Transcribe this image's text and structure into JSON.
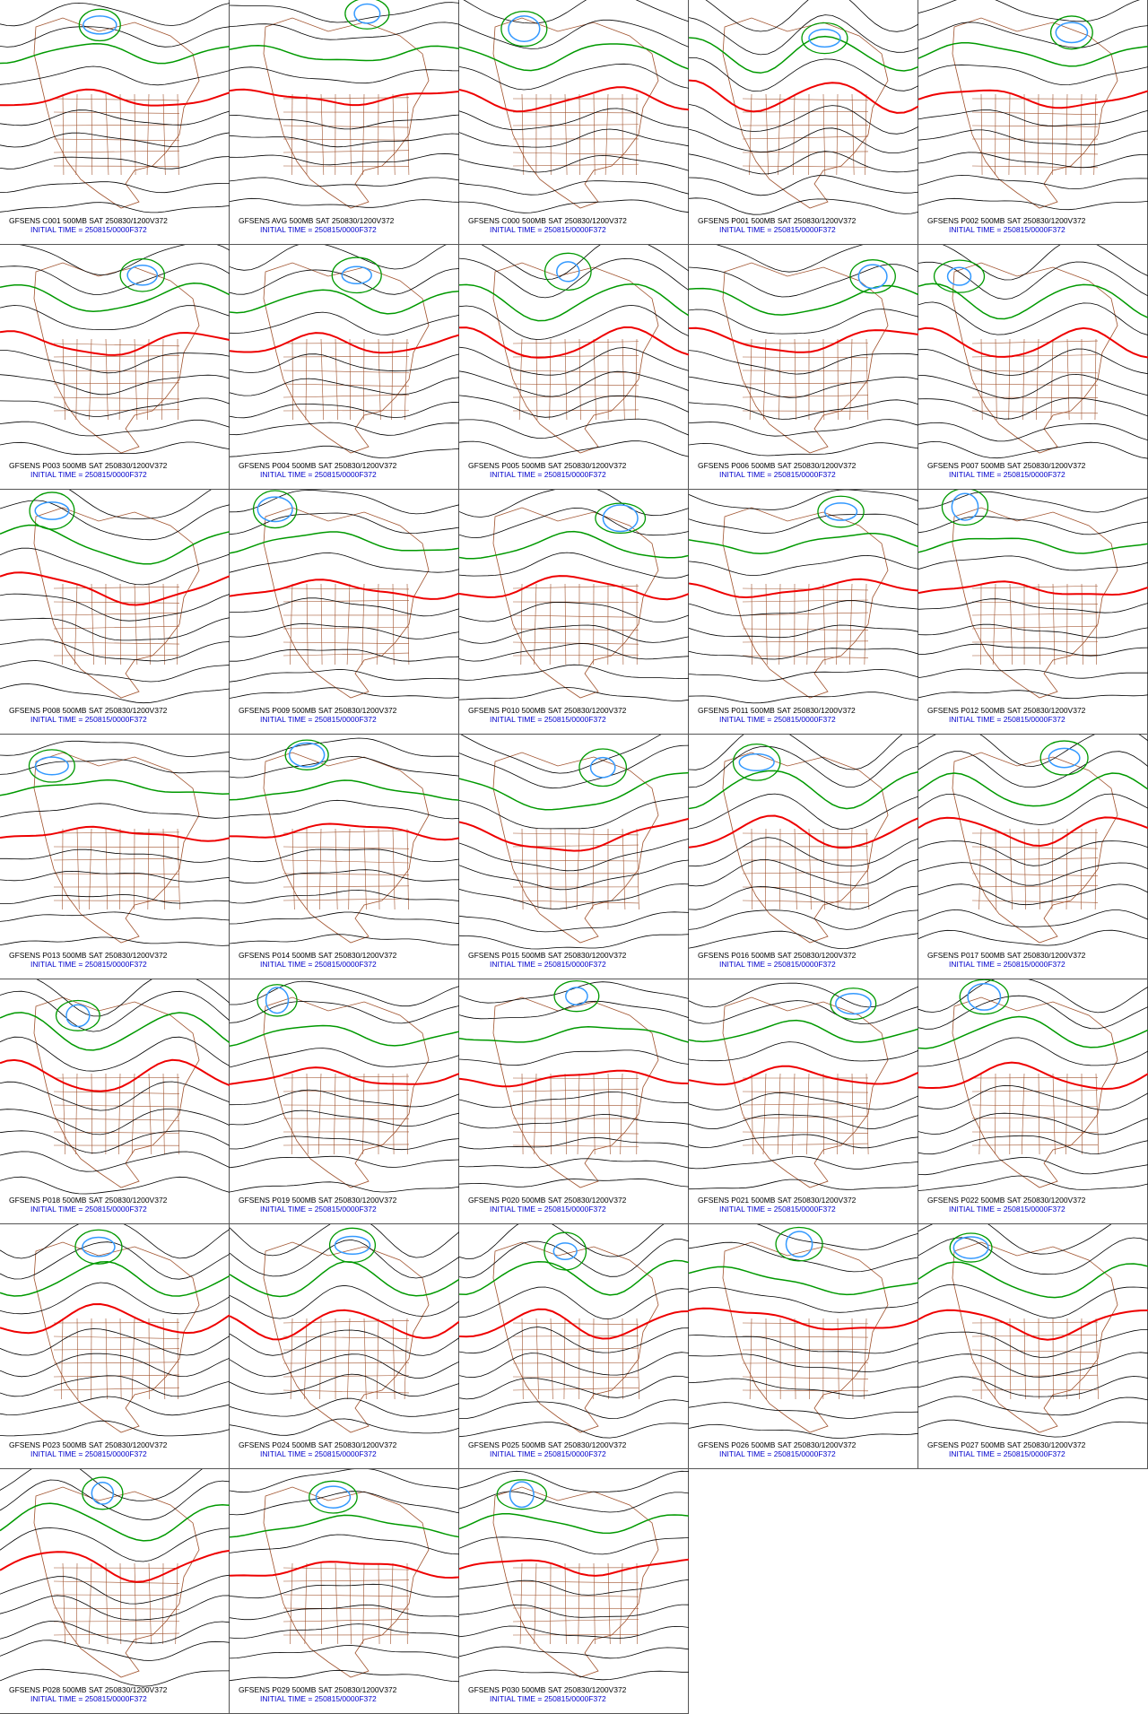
{
  "panels": [
    {
      "header": "GFSENS C001 500MB SAT 250830/1200V372",
      "initial_time": "INITIAL TIME = 250815/0000F372"
    },
    {
      "header": "GFSENS AVG 500MB SAT 250830/1200V372",
      "initial_time": "INITIAL TIME = 250815/0000F372"
    },
    {
      "header": "GFSENS C000 500MB SAT 250830/1200V372",
      "initial_time": "INITIAL TIME = 250815/0000F372"
    },
    {
      "header": "GFSENS P001 500MB SAT 250830/1200V372",
      "initial_time": "INITIAL TIME = 250815/0000F372"
    },
    {
      "header": "GFSENS P002 500MB SAT 250830/1200V372",
      "initial_time": "INITIAL TIME = 250815/0000F372"
    },
    {
      "header": "GFSENS P003 500MB SAT 250830/1200V372",
      "initial_time": "INITIAL TIME = 250815/0000F372"
    },
    {
      "header": "GFSENS P004 500MB SAT 250830/1200V372",
      "initial_time": "INITIAL TIME = 250815/0000F372"
    },
    {
      "header": "GFSENS P005 500MB SAT 250830/1200V372",
      "initial_time": "INITIAL TIME = 250815/0000F372"
    },
    {
      "header": "GFSENS P006 500MB SAT 250830/1200V372",
      "initial_time": "INITIAL TIME = 250815/0000F372"
    },
    {
      "header": "GFSENS P007 500MB SAT 250830/1200V372",
      "initial_time": "INITIAL TIME = 250815/0000F372"
    },
    {
      "header": "GFSENS P008 500MB SAT 250830/1200V372",
      "initial_time": "INITIAL TIME = 250815/0000F372"
    },
    {
      "header": "GFSENS P009 500MB SAT 250830/1200V372",
      "initial_time": "INITIAL TIME = 250815/0000F372"
    },
    {
      "header": "GFSENS P010 500MB SAT 250830/1200V372",
      "initial_time": "INITIAL TIME = 250815/0000F372"
    },
    {
      "header": "GFSENS P011 500MB SAT 250830/1200V372",
      "initial_time": "INITIAL TIME = 250815/0000F372"
    },
    {
      "header": "GFSENS P012 500MB SAT 250830/1200V372",
      "initial_time": "INITIAL TIME = 250815/0000F372"
    },
    {
      "header": "GFSENS P013 500MB SAT 250830/1200V372",
      "initial_time": "INITIAL TIME = 250815/0000F372"
    },
    {
      "header": "GFSENS P014 500MB SAT 250830/1200V372",
      "initial_time": "INITIAL TIME = 250815/0000F372"
    },
    {
      "header": "GFSENS P015 500MB SAT 250830/1200V372",
      "initial_time": "INITIAL TIME = 250815/0000F372"
    },
    {
      "header": "GFSENS P016 500MB SAT 250830/1200V372",
      "initial_time": "INITIAL TIME = 250815/0000F372"
    },
    {
      "header": "GFSENS P017 500MB SAT 250830/1200V372",
      "initial_time": "INITIAL TIME = 250815/0000F372"
    },
    {
      "header": "GFSENS P018 500MB SAT 250830/1200V372",
      "initial_time": "INITIAL TIME = 250815/0000F372"
    },
    {
      "header": "GFSENS P019 500MB SAT 250830/1200V372",
      "initial_time": "INITIAL TIME = 250815/0000F372"
    },
    {
      "header": "GFSENS P020 500MB SAT 250830/1200V372",
      "initial_time": "INITIAL TIME = 250815/0000F372"
    },
    {
      "header": "GFSENS P021 500MB SAT 250830/1200V372",
      "initial_time": "INITIAL TIME = 250815/0000F372"
    },
    {
      "header": "GFSENS P022 500MB SAT 250830/1200V372",
      "initial_time": "INITIAL TIME = 250815/0000F372"
    },
    {
      "header": "GFSENS P023 500MB SAT 250830/1200V372",
      "initial_time": "INITIAL TIME = 250815/0000F372"
    },
    {
      "header": "GFSENS P024 500MB SAT 250830/1200V372",
      "initial_time": "INITIAL TIME = 250815/0000F372"
    },
    {
      "header": "GFSENS P025 500MB SAT 250830/1200V372",
      "initial_time": "INITIAL TIME = 250815/0000F372"
    },
    {
      "header": "GFSENS P026 500MB SAT 250830/1200V372",
      "initial_time": "INITIAL TIME = 250815/0000F372"
    },
    {
      "header": "GFSENS P027 500MB SAT 250830/1200V372",
      "initial_time": "INITIAL TIME = 250815/0000F372"
    },
    {
      "header": "GFSENS P028 500MB SAT 250830/1200V372",
      "initial_time": "INITIAL TIME = 250815/0000F372"
    },
    {
      "header": "GFSENS P029 500MB SAT 250830/1200V372",
      "initial_time": "INITIAL TIME = 250815/0000F372"
    },
    {
      "header": "GFSENS P030 500MB SAT 250830/1200V372",
      "initial_time": "INITIAL TIME = 250815/0000F372"
    }
  ]
}
